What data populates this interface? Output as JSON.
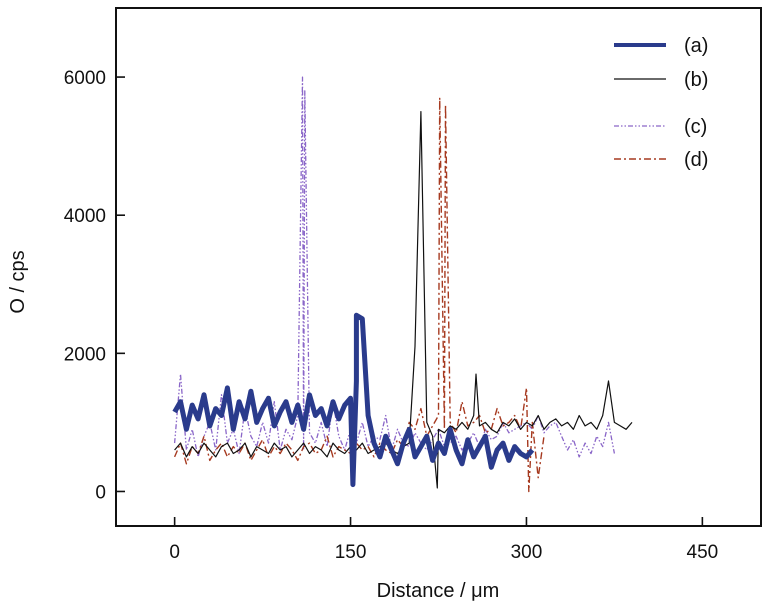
{
  "chart_data": {
    "type": "line",
    "title": "",
    "xlabel": "Distance / μm",
    "ylabel": "O / cps",
    "xlim": [
      -50,
      500
    ],
    "ylim": [
      -500,
      7000
    ],
    "xticks": [
      0,
      150,
      300,
      450
    ],
    "yticks": [
      0,
      2000,
      4000,
      6000
    ],
    "xtick_labels": [
      "0",
      "150",
      "300",
      "450"
    ],
    "ytick_labels": [
      "0",
      "2000",
      "4000",
      "6000"
    ],
    "grid": false,
    "legend_position": "top-right",
    "series": [
      {
        "name": "(a)",
        "color": "#2a3b8c",
        "style": "solid-thick",
        "x_start": 0,
        "x_step": 5,
        "values": [
          1150,
          1300,
          900,
          1250,
          1050,
          1400,
          950,
          1200,
          1100,
          1500,
          900,
          1300,
          1050,
          1450,
          1000,
          1200,
          1350,
          950,
          1150,
          1300,
          1000,
          1250,
          900,
          1400,
          1100,
          1200,
          950,
          1300,
          1050,
          1250,
          1350,
          1600,
          2500,
          1100,
          700,
          500,
          800,
          600,
          400,
          700,
          900,
          500,
          650,
          800,
          450,
          700,
          550,
          900,
          600,
          400,
          750,
          500,
          650,
          800,
          350,
          600,
          700,
          450,
          650,
          550,
          500,
          600
        ],
        "spikes": [
          [
            155,
            2550
          ],
          [
            152,
            100
          ]
        ]
      },
      {
        "name": "(b)",
        "color": "#111111",
        "style": "solid-thin",
        "x_start": 0,
        "x_step": 5,
        "values": [
          600,
          700,
          500,
          650,
          550,
          700,
          600,
          500,
          650,
          700,
          550,
          600,
          700,
          500,
          650,
          600,
          550,
          700,
          600,
          650,
          500,
          600,
          700,
          550,
          650,
          600,
          500,
          700,
          600,
          550,
          650,
          600,
          700,
          550,
          600,
          650,
          700,
          600,
          550,
          650,
          700,
          2100,
          5500,
          1000,
          800,
          900,
          850,
          950,
          900,
          1000,
          900,
          1100,
          950,
          1000,
          900,
          850,
          1000,
          950,
          1050,
          900,
          1000,
          950,
          1100,
          900,
          1000,
          1050,
          950,
          1000,
          900,
          1100,
          950,
          1000,
          900,
          1100,
          1600,
          1000,
          950,
          900,
          1000
        ],
        "spikes": [
          [
            224,
            50
          ],
          [
            257,
            1700
          ]
        ]
      },
      {
        "name": "(c)",
        "color": "#8a66c8",
        "style": "dash-dot-dot",
        "x_start": 0,
        "x_step": 5,
        "values": [
          700,
          1700,
          600,
          900,
          500,
          800,
          1000,
          600,
          1400,
          700,
          900,
          550,
          1200,
          800,
          650,
          1000,
          700,
          1300,
          600,
          900,
          750,
          1100,
          600,
          850,
          700,
          1000,
          650,
          1300,
          800,
          600,
          900,
          700,
          1000,
          650,
          800,
          750,
          1100,
          600,
          900,
          700,
          650,
          850,
          700,
          600,
          750,
          900,
          650,
          700,
          800,
          600,
          700,
          850,
          650,
          900,
          750,
          800,
          1000,
          850,
          900,
          950,
          1000,
          900,
          1100,
          850,
          950,
          1000,
          800,
          600,
          750,
          500,
          700,
          550,
          800,
          650,
          1000,
          550
        ],
        "spikes": [
          [
            109,
            6000
          ],
          [
            111,
            5800
          ]
        ]
      },
      {
        "name": "(d)",
        "color": "#a63a20",
        "style": "dash-dot",
        "x_start": 0,
        "x_step": 5,
        "values": [
          500,
          700,
          400,
          650,
          550,
          800,
          450,
          600,
          700,
          500,
          650,
          550,
          700,
          450,
          600,
          750,
          500,
          650,
          550,
          700,
          600,
          450,
          650,
          700,
          550,
          600,
          800,
          500,
          650,
          600,
          550,
          700,
          600,
          650,
          500,
          700,
          600,
          550,
          750,
          650,
          1000,
          900,
          1200,
          800,
          950,
          1100,
          900,
          1000,
          850,
          1300,
          950,
          1000,
          1100,
          850,
          900,
          1200,
          950,
          1000,
          1100,
          900,
          1500,
          1000,
          200,
          800
        ],
        "spikes": [
          [
            226,
            5700
          ],
          [
            231,
            5600
          ],
          [
            302,
            0
          ]
        ]
      }
    ]
  }
}
